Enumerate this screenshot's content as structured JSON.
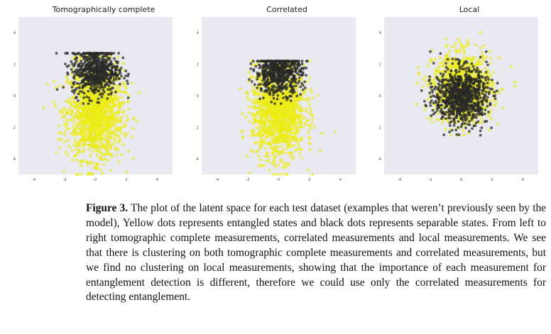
{
  "figure": {
    "label": "Figure 3.",
    "caption": "The plot of the latent space for each test dataset (examples that weren’t previously seen by the model), Yellow dots represents entangled states and black dots represents separable states. From left to right tomographic complete measurements, correlated measurements and local measurements. We see that there is clustering on both tomographic complete measurements and correlated measurements, but we find no clustering on local measurements, showing that the importance of each measurement for entanglement detection is different, therefore we could use only the correlated measurements for detecting entanglement."
  },
  "colors": {
    "plot_background": "#e9e9f1",
    "entangled": "#f5f51c",
    "separable": "#333333"
  },
  "chart_data": [
    {
      "type": "scatter",
      "title": "Tomographically complete",
      "xlim": [
        -5,
        5
      ],
      "ylim": [
        -5,
        5
      ],
      "xticks": [
        "-4",
        "-2",
        "0",
        "2",
        "4"
      ],
      "yticks": [
        "4",
        "2",
        "0",
        "-2",
        "-4"
      ],
      "grid": false,
      "series": [
        {
          "color": "entangled",
          "count": 1500,
          "x_center": 0.0,
          "x_sd": 0.9,
          "y_center": -1.0,
          "y_sd": 1.5,
          "y_range": [
            -5,
            2.5
          ]
        },
        {
          "color": "separable",
          "count": 650,
          "x_center": 0.0,
          "x_sd": 0.75,
          "y_center": 1.6,
          "y_sd": 0.8,
          "y_range": [
            -0.5,
            2.7
          ]
        }
      ]
    },
    {
      "type": "scatter",
      "title": "Correlated",
      "xlim": [
        -5,
        5
      ],
      "ylim": [
        -5,
        5
      ],
      "xticks": [
        "-4",
        "-2",
        "0",
        "2",
        "4"
      ],
      "yticks": [
        "4",
        "2",
        "0",
        "-2",
        "-4"
      ],
      "grid": false,
      "series": [
        {
          "color": "entangled",
          "count": 1500,
          "x_center": 0.0,
          "x_sd": 0.85,
          "y_center": -0.9,
          "y_sd": 1.5,
          "y_range": [
            -5,
            2.2
          ]
        },
        {
          "color": "separable",
          "count": 650,
          "x_center": 0.0,
          "x_sd": 0.75,
          "y_center": 1.5,
          "y_sd": 0.7,
          "y_range": [
            -0.5,
            2.2
          ]
        }
      ]
    },
    {
      "type": "scatter",
      "title": "Local",
      "xlim": [
        -5,
        5
      ],
      "ylim": [
        -5,
        5
      ],
      "xticks": [
        "-4",
        "-2",
        "0",
        "2",
        "4"
      ],
      "yticks": [
        "4",
        "2",
        "0",
        "-2",
        "-4"
      ],
      "grid": false,
      "series": [
        {
          "color": "entangled",
          "count": 1200,
          "x_center": 0.1,
          "x_sd": 0.95,
          "y_center": 0.5,
          "y_sd": 1.1,
          "y_range": [
            -2.5,
            4.0
          ]
        },
        {
          "color": "separable",
          "count": 900,
          "x_center": 0.0,
          "x_sd": 0.85,
          "y_center": 0.0,
          "y_sd": 0.9,
          "y_range": [
            -2.6,
            2.8
          ]
        }
      ]
    }
  ]
}
